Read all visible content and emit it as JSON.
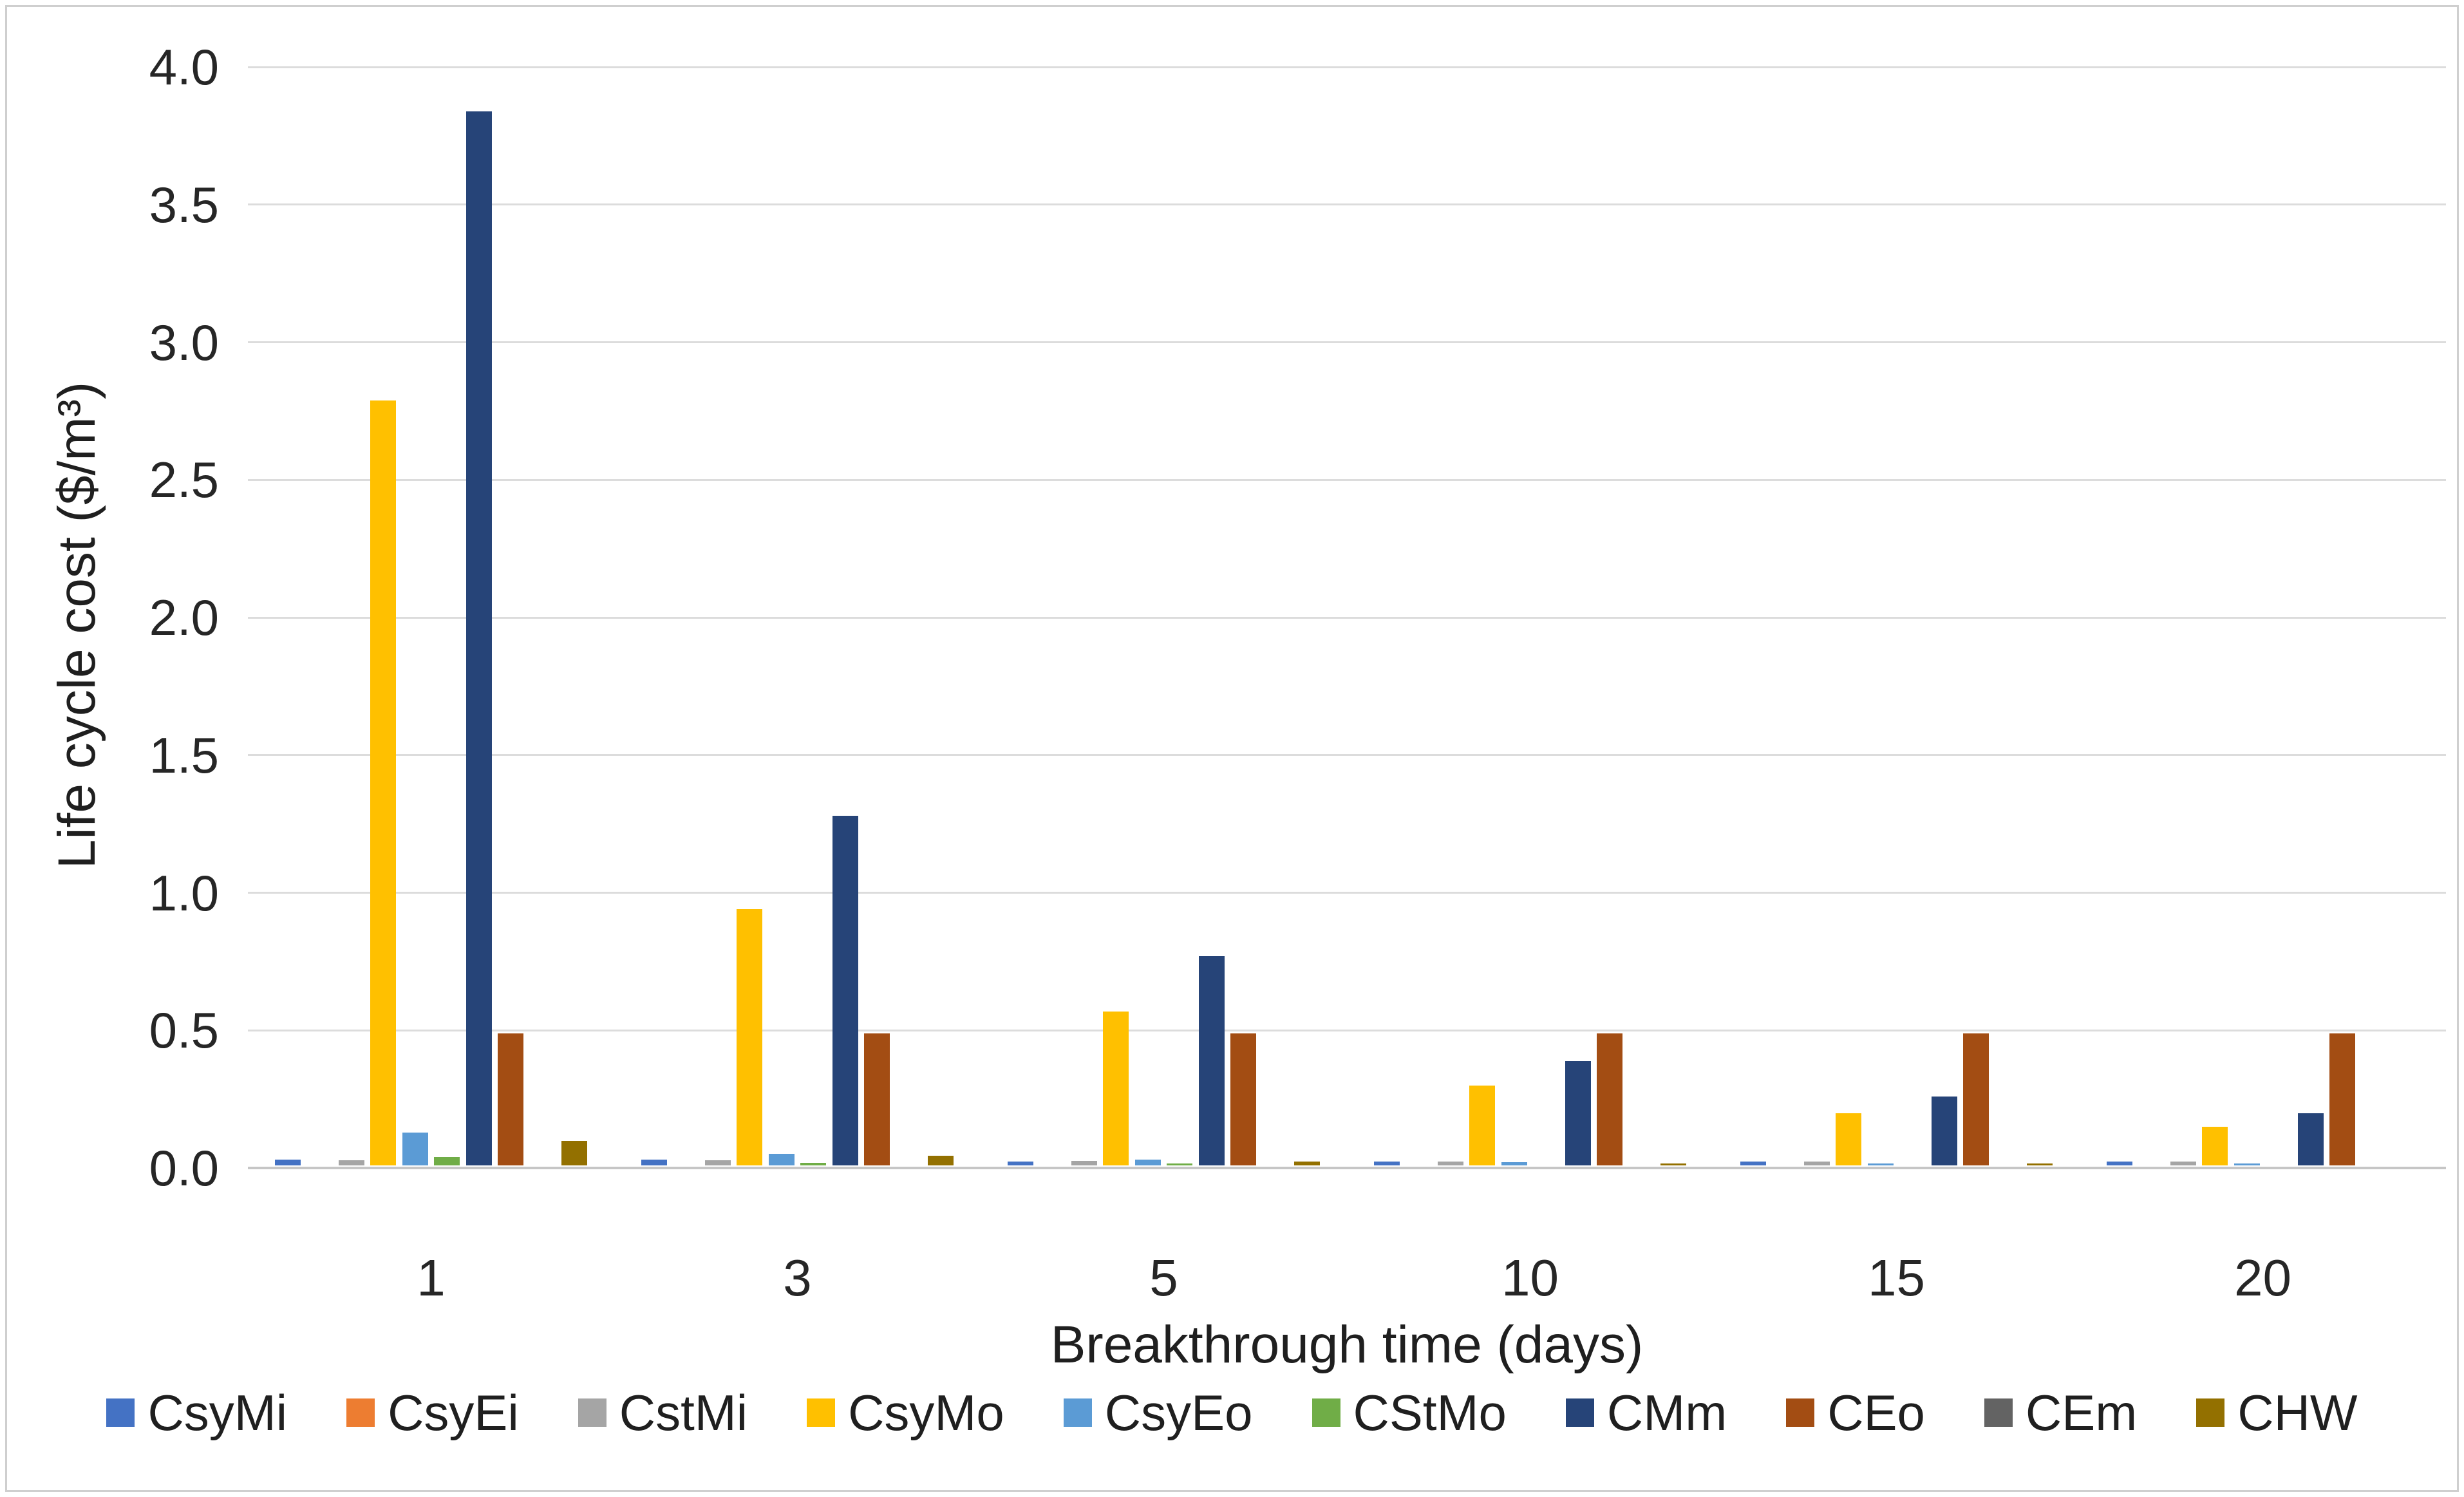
{
  "chart_data": {
    "type": "bar",
    "title": "",
    "xlabel": "Breakthrough time (days)",
    "ylabel": "Life cycle cost ($/m³)",
    "categories": [
      "1",
      "3",
      "5",
      "10",
      "15",
      "20"
    ],
    "series": [
      {
        "name": "CsyMi",
        "color": "#4472C4",
        "values": [
          0.02,
          0.02,
          0.015,
          0.015,
          0.013,
          0.013
        ]
      },
      {
        "name": "CsyEi",
        "color": "#ED7D31",
        "values": [
          0,
          0,
          0,
          0,
          0,
          0
        ]
      },
      {
        "name": "CstMi",
        "color": "#A5A5A5",
        "values": [
          0.018,
          0.018,
          0.016,
          0.015,
          0.014,
          0.014
        ]
      },
      {
        "name": "CsyMo",
        "color": "#FFC000",
        "values": [
          2.78,
          0.93,
          0.56,
          0.29,
          0.19,
          0.14
        ]
      },
      {
        "name": "CsyEo",
        "color": "#5B9BD5",
        "values": [
          0.12,
          0.042,
          0.02,
          0.012,
          0.008,
          0.006
        ]
      },
      {
        "name": "CStMo",
        "color": "#70AD47",
        "values": [
          0.03,
          0.01,
          0.006,
          0,
          0,
          0
        ]
      },
      {
        "name": "CMm",
        "color": "#264478",
        "values": [
          3.83,
          1.27,
          0.76,
          0.38,
          0.25,
          0.19
        ]
      },
      {
        "name": "CEo",
        "color": "#A34D13",
        "values": [
          0.48,
          0.48,
          0.48,
          0.48,
          0.48,
          0.48
        ]
      },
      {
        "name": "CEm",
        "color": "#636363",
        "values": [
          0,
          0,
          0,
          0,
          0,
          0
        ]
      },
      {
        "name": "CHW",
        "color": "#937000",
        "values": [
          0.09,
          0.034,
          0.015,
          0.006,
          0.006,
          0
        ]
      }
    ],
    "ylim": [
      0.0,
      4.0
    ],
    "ytick_step": 0.5,
    "ytick_labels": [
      "0.0",
      "0.5",
      "1.0",
      "1.5",
      "2.0",
      "2.5",
      "3.0",
      "3.5",
      "4.0"
    ],
    "grid": "horizontal",
    "legend_position": "bottom",
    "colors": {
      "gridline": "#DCDCDC",
      "axis_line": "#C6C6C6",
      "text": "#262626",
      "background": "#FFFFFF",
      "frame_border": "#CFCFCF"
    }
  }
}
